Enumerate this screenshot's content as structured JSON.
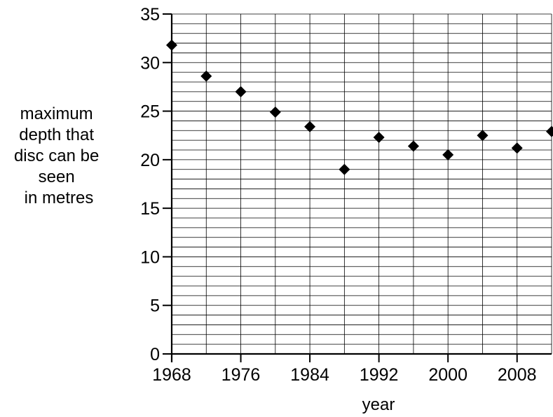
{
  "chart_data": {
    "type": "scatter",
    "xlabel": "year",
    "ylabel_lines": [
      "maximum",
      "depth that",
      "disc can be",
      "seen",
      "in metres"
    ],
    "xlim": [
      1968,
      2012
    ],
    "ylim": [
      0,
      35
    ],
    "x_ticks": [
      1968,
      1976,
      1984,
      1992,
      2000,
      2008
    ],
    "y_ticks": [
      0,
      5,
      10,
      15,
      20,
      25,
      30,
      35
    ],
    "grid": true,
    "x_grid_step": 4,
    "y_grid_step": 1,
    "marker": "diamond",
    "marker_color": "#000000",
    "points": [
      {
        "x": 1968,
        "y": 31.8
      },
      {
        "x": 1972,
        "y": 28.6
      },
      {
        "x": 1976,
        "y": 27.0
      },
      {
        "x": 1980,
        "y": 24.9
      },
      {
        "x": 1984,
        "y": 23.4
      },
      {
        "x": 1988,
        "y": 19.0
      },
      {
        "x": 1992,
        "y": 22.3
      },
      {
        "x": 1996,
        "y": 21.4
      },
      {
        "x": 2000,
        "y": 20.5
      },
      {
        "x": 2004,
        "y": 22.5
      },
      {
        "x": 2008,
        "y": 21.2
      },
      {
        "x": 2012,
        "y": 22.9
      }
    ]
  }
}
